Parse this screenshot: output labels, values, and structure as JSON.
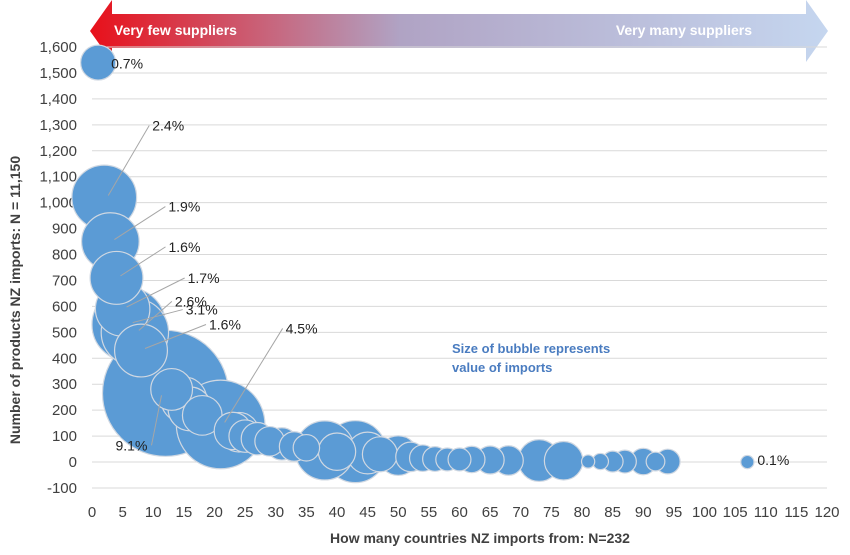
{
  "chart_data": {
    "type": "scatter",
    "subtype": "bubble",
    "xlabel": "How many countries NZ imports from: N=232",
    "ylabel": "Number of products NZ imports: N = 11,150",
    "xlim": [
      0,
      120
    ],
    "ylim": [
      -100,
      1600
    ],
    "x_ticks": [
      0,
      5,
      10,
      15,
      20,
      25,
      30,
      35,
      40,
      45,
      50,
      55,
      60,
      65,
      70,
      75,
      80,
      85,
      90,
      95,
      100,
      105,
      110,
      115,
      120
    ],
    "y_ticks": [
      -100,
      0,
      100,
      200,
      300,
      400,
      500,
      600,
      700,
      800,
      900,
      1000,
      1100,
      1200,
      1300,
      1400,
      1500,
      1600
    ],
    "y_tick_labels": [
      "-100",
      "0",
      "100",
      "200",
      "300",
      "400",
      "500",
      "600",
      "700",
      "800",
      "900",
      "1,000",
      "1,100",
      "1,200",
      "1,300",
      "1,400",
      "1,500",
      "1,600"
    ],
    "grid": "horizontal",
    "bubble_color": "#5b9bd5",
    "bubble_stroke": "#d0d8e2",
    "bubbles": [
      {
        "x": 1,
        "y": 1540,
        "size": 0.7
      },
      {
        "x": 2,
        "y": 1020,
        "size": 2.4
      },
      {
        "x": 3,
        "y": 850,
        "size": 1.9
      },
      {
        "x": 4,
        "y": 710,
        "size": 1.6
      },
      {
        "x": 5,
        "y": 590,
        "size": 1.7
      },
      {
        "x": 6,
        "y": 530,
        "size": 3.1
      },
      {
        "x": 7,
        "y": 500,
        "size": 2.6
      },
      {
        "x": 8,
        "y": 430,
        "size": 1.6
      },
      {
        "x": 12,
        "y": 265,
        "size": 9.1
      },
      {
        "x": 13,
        "y": 280,
        "size": 1.0
      },
      {
        "x": 15,
        "y": 240,
        "size": 1.2
      },
      {
        "x": 16,
        "y": 205,
        "size": 1.1
      },
      {
        "x": 18,
        "y": 180,
        "size": 0.9
      },
      {
        "x": 21,
        "y": 145,
        "size": 4.5
      },
      {
        "x": 23,
        "y": 120,
        "size": 0.8
      },
      {
        "x": 24,
        "y": 115,
        "size": 0.9
      },
      {
        "x": 25,
        "y": 100,
        "size": 0.6
      },
      {
        "x": 27,
        "y": 90,
        "size": 0.6
      },
      {
        "x": 29,
        "y": 80,
        "size": 0.5
      },
      {
        "x": 31,
        "y": 70,
        "size": 0.6
      },
      {
        "x": 33,
        "y": 60,
        "size": 0.5
      },
      {
        "x": 35,
        "y": 55,
        "size": 0.4
      },
      {
        "x": 38,
        "y": 45,
        "size": 2.0
      },
      {
        "x": 40,
        "y": 40,
        "size": 0.8
      },
      {
        "x": 43,
        "y": 40,
        "size": 2.2
      },
      {
        "x": 45,
        "y": 35,
        "size": 1.0
      },
      {
        "x": 47,
        "y": 30,
        "size": 0.7
      },
      {
        "x": 50,
        "y": 25,
        "size": 0.9
      },
      {
        "x": 52,
        "y": 20,
        "size": 0.5
      },
      {
        "x": 54,
        "y": 15,
        "size": 0.4
      },
      {
        "x": 56,
        "y": 12,
        "size": 0.35
      },
      {
        "x": 58,
        "y": 10,
        "size": 0.3
      },
      {
        "x": 60,
        "y": 10,
        "size": 0.3
      },
      {
        "x": 62,
        "y": 10,
        "size": 0.4
      },
      {
        "x": 65,
        "y": 8,
        "size": 0.45
      },
      {
        "x": 68,
        "y": 6,
        "size": 0.5
      },
      {
        "x": 73,
        "y": 6,
        "size": 1.0
      },
      {
        "x": 77,
        "y": 5,
        "size": 0.85
      },
      {
        "x": 81,
        "y": 2,
        "size": 0.1
      },
      {
        "x": 83,
        "y": 2,
        "size": 0.15
      },
      {
        "x": 85,
        "y": 2,
        "size": 0.25
      },
      {
        "x": 87,
        "y": 2,
        "size": 0.3
      },
      {
        "x": 90,
        "y": 2,
        "size": 0.4
      },
      {
        "x": 92,
        "y": 2,
        "size": 0.2
      },
      {
        "x": 94,
        "y": 2,
        "size": 0.35
      },
      {
        "x": 107,
        "y": 0,
        "size": 0.1
      }
    ],
    "data_labels": [
      {
        "text": "0.7%",
        "x": 1,
        "y": 1540
      },
      {
        "text": "2.4%",
        "x": 2,
        "y": 1020
      },
      {
        "text": "1.9%",
        "x": 3,
        "y": 850
      },
      {
        "text": "1.6%",
        "x": 4,
        "y": 710
      },
      {
        "text": "3.1%",
        "x": 6,
        "y": 530
      },
      {
        "text": "2.6%",
        "x": 7,
        "y": 500
      },
      {
        "text": "1.7%",
        "x": 5,
        "y": 590
      },
      {
        "text": "1.6%",
        "x": 8,
        "y": 430
      },
      {
        "text": "4.5%",
        "x": 21,
        "y": 145
      },
      {
        "text": "9.1%",
        "x": 12,
        "y": 265
      },
      {
        "text": "0.1%",
        "x": 107,
        "y": 0
      }
    ],
    "banner": {
      "left_label": "Very few suppliers",
      "right_label": "Very many suppliers",
      "left_color": "#e8101a",
      "right_color": "#c5d6ef"
    },
    "note": [
      "Size of bubble represents",
      "value of imports"
    ]
  }
}
